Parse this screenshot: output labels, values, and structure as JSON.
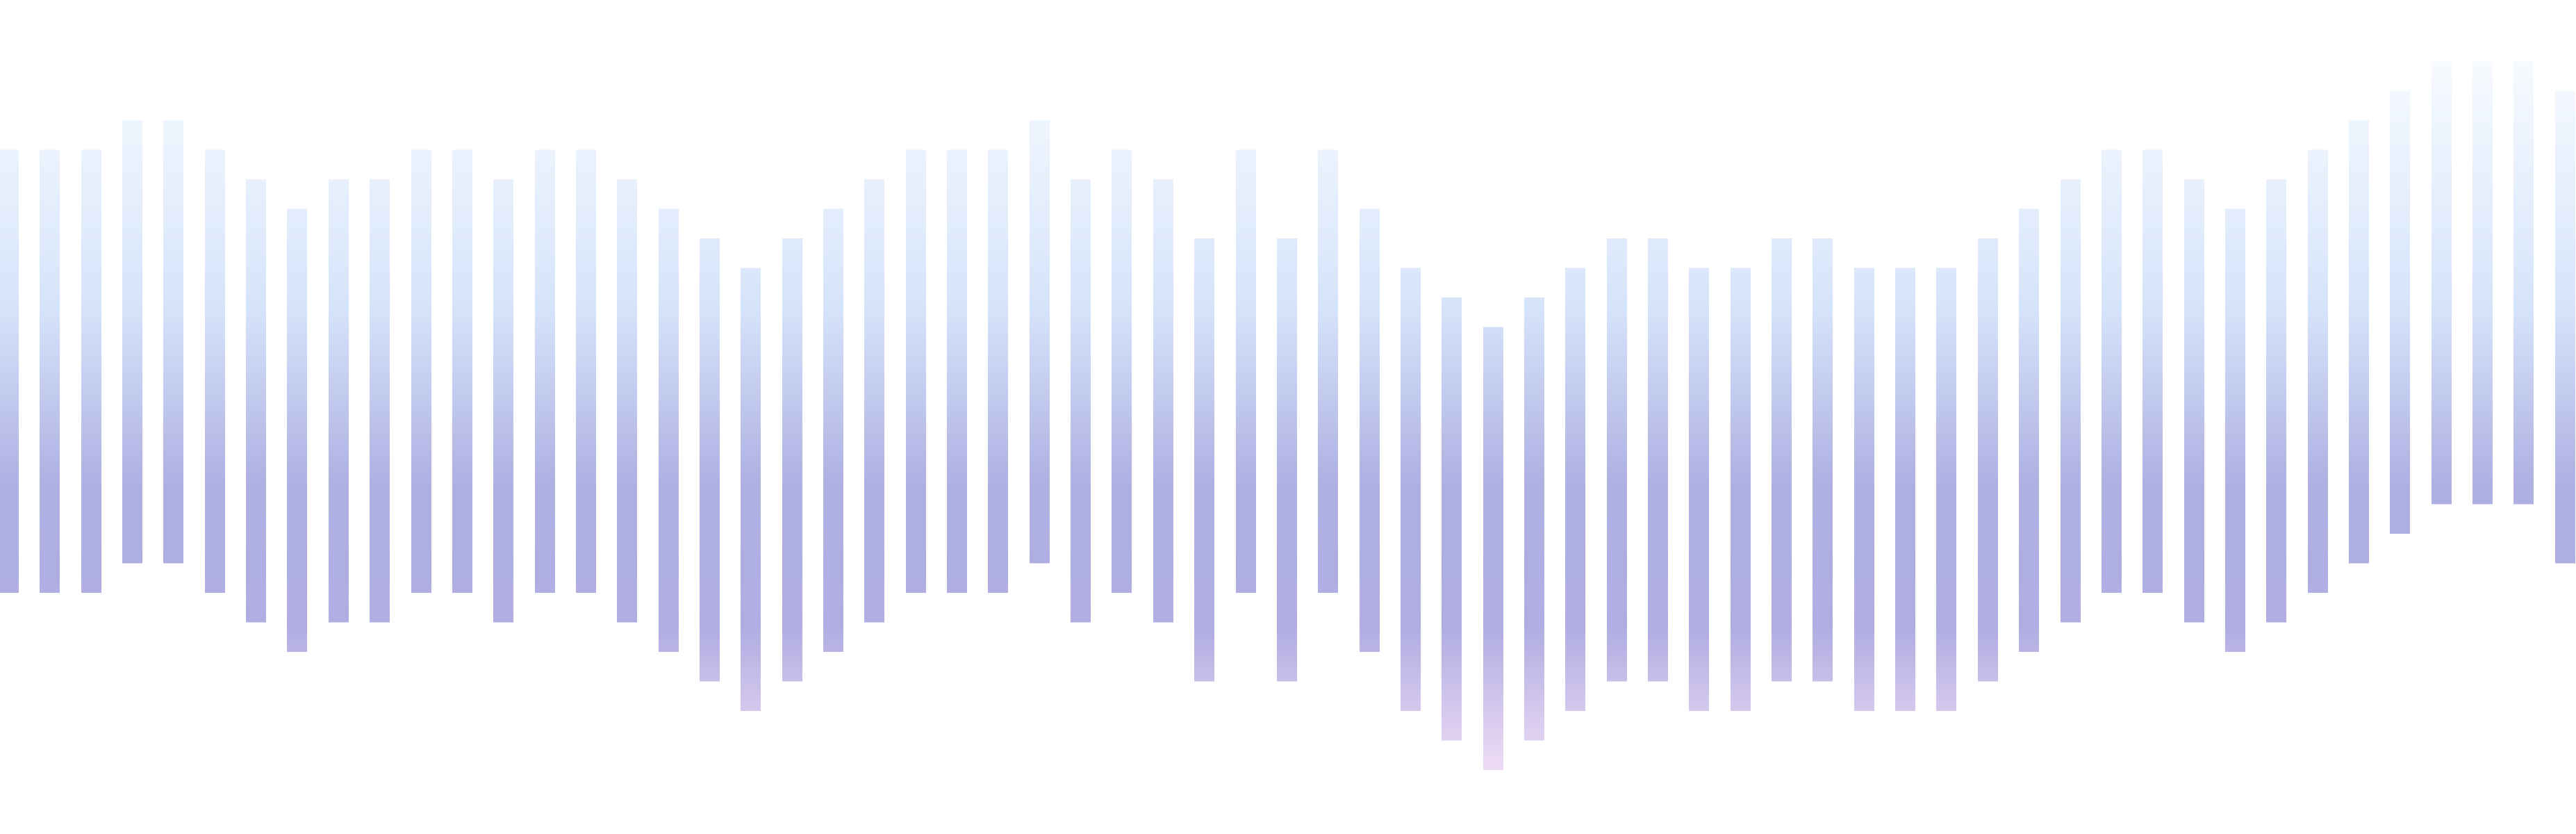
{
  "palette": {
    "background": "#ffffff",
    "gradient": [
      "#f8fbff",
      "#d6e4fa",
      "#aeb0e2",
      "#b0ade2",
      "#efdcf5"
    ]
  },
  "bars": {
    "count": 63,
    "top_levels": [
      3,
      3,
      3,
      2,
      2,
      3,
      4,
      5,
      4,
      4,
      3,
      3,
      4,
      3,
      3,
      4,
      5,
      6,
      7,
      6,
      5,
      4,
      3,
      3,
      3,
      2,
      4,
      3,
      4,
      6,
      3,
      6,
      3,
      5,
      7,
      8,
      9,
      8,
      7,
      6,
      6,
      7,
      7,
      6,
      6,
      7,
      7,
      7,
      6,
      5,
      4,
      3,
      3,
      4,
      5,
      4,
      3,
      2,
      1,
      0,
      0,
      0,
      1
    ],
    "lengths": [
      15,
      15,
      15,
      15,
      15,
      15,
      15,
      15,
      15,
      15,
      15,
      15,
      15,
      15,
      15,
      15,
      15,
      15,
      15,
      15,
      15,
      15,
      15,
      15,
      15,
      15,
      15,
      15,
      15,
      15,
      15,
      15,
      15,
      15,
      15,
      15,
      15,
      15,
      15,
      15,
      15,
      15,
      15,
      15,
      15,
      15,
      15,
      15,
      15,
      15,
      15,
      15,
      15,
      15,
      15,
      15,
      15,
      15,
      15,
      15,
      15,
      15,
      16
    ]
  }
}
